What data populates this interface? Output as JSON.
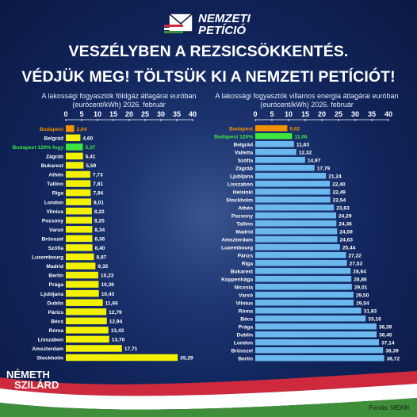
{
  "logo": {
    "line1": "NEMZETI",
    "line2": "PETÍCIÓ"
  },
  "headline": {
    "line1": "VESZÉLYBEN A REZSICSÖKKENTÉS.",
    "line2": "VÉDJÜK MEG! TÖLTSÜK KI A NEMZETI PETÍCIÓT!"
  },
  "branding": {
    "line1": "NÉMETH",
    "line2": "SZILÁRD"
  },
  "source": "Forrás: MEKH",
  "colors": {
    "background": "#10245a",
    "bar_left": "#f2f200",
    "bar_right": "#6ab8ee",
    "highlight_orange": "#f39200",
    "highlight_green": "#3ee63e",
    "flag_red": "#cd2a3e",
    "flag_white": "#ffffff",
    "flag_green": "#3f8f3a"
  },
  "chart_data": [
    {
      "type": "bar",
      "orientation": "horizontal",
      "title": "A lakossági fogyasztók földgáz átlagárai euróban (eurócent/kWh) 2026. február",
      "xlim": [
        0,
        40
      ],
      "xticks": [
        "0",
        "5",
        "10",
        "15",
        "20",
        "25",
        "30",
        "35",
        "40"
      ],
      "categories": [
        "Budapest",
        "Belgrád",
        "Budapest 120% fogy",
        "Zágráb",
        "Bukarest",
        "Athén",
        "Tallinn",
        "Riga",
        "London",
        "Vilnius",
        "Pozsony",
        "Varsó",
        "Brüsszel",
        "Szófia",
        "Luxembourg",
        "Madrid",
        "Berlin",
        "Prága",
        "Ljubljana",
        "Dublin",
        "Párizs",
        "Bécs",
        "Róma",
        "Lisszabon",
        "Amszterdam",
        "Stockholm"
      ],
      "values": [
        2.64,
        4.6,
        5.37,
        5.41,
        5.59,
        7.73,
        7.81,
        7.84,
        8.01,
        8.22,
        8.25,
        8.34,
        8.36,
        8.4,
        8.87,
        9.35,
        10.23,
        10.36,
        10.43,
        11.66,
        12.79,
        12.94,
        13.43,
        13.7,
        17.71,
        35.29
      ],
      "labels": [
        "2,64",
        "4,60",
        "5,37",
        "5,41",
        "5,59",
        "7,73",
        "7,81",
        "7,84",
        "8,01",
        "8,22",
        "8,25",
        "8,34",
        "8,36",
        "8,40",
        "8,87",
        "9,35",
        "10,23",
        "10,36",
        "10,43",
        "11,66",
        "12,79",
        "12,94",
        "13,43",
        "13,70",
        "17,71",
        "35,29"
      ],
      "highlight": {
        "0": "orange",
        "2": "green"
      }
    },
    {
      "type": "bar",
      "orientation": "horizontal",
      "title": "A lakossági fogyasztók villamos energia átlagárai euróban (eurócent/kWh) 2026. február",
      "xlim": [
        0,
        40
      ],
      "xticks": [
        "0",
        "5",
        "10",
        "15",
        "20",
        "25",
        "30",
        "35",
        "40"
      ],
      "categories": [
        "Budapest",
        "Budapest 120%",
        "Belgrád",
        "Valletta",
        "Szófia",
        "Zágráb",
        "Ljubljana",
        "Lisszabon",
        "Helsinki",
        "Stockholm",
        "Athén",
        "Pozsony",
        "Tallinn",
        "Madrid",
        "Amszterdam",
        "Luxembourg",
        "Párizs",
        "Riga",
        "Bukarest",
        "Koppenhága",
        "Nicosia",
        "Varsó",
        "Vilnius",
        "Róma",
        "Bécs",
        "Prága",
        "Dublin",
        "London",
        "Brüsszel",
        "Berlin"
      ],
      "values": [
        9.62,
        11.06,
        11.63,
        12.32,
        14.97,
        17.79,
        21.24,
        22.4,
        22.49,
        22.54,
        23.63,
        24.29,
        24.36,
        24.59,
        24.63,
        25.44,
        27.22,
        27.53,
        28.64,
        28.86,
        29.01,
        29.5,
        29.54,
        31.83,
        33.16,
        36.39,
        36.45,
        37.14,
        38.39,
        38.72
      ],
      "labels": [
        "9,62",
        "11,06",
        "11,63",
        "12,32",
        "14,97",
        "17,79",
        "21,24",
        "22,40",
        "22,49",
        "22,54",
        "23,63",
        "24,29",
        "24,36",
        "24,59",
        "24,63",
        "25,44",
        "27,22",
        "27,53",
        "28,64",
        "28,86",
        "29,01",
        "29,50",
        "29,54",
        "31,83",
        "33,16",
        "36,39",
        "36,45",
        "37,14",
        "38,39",
        "38,72"
      ],
      "highlight": {
        "0": "orange",
        "1": "green"
      }
    }
  ]
}
